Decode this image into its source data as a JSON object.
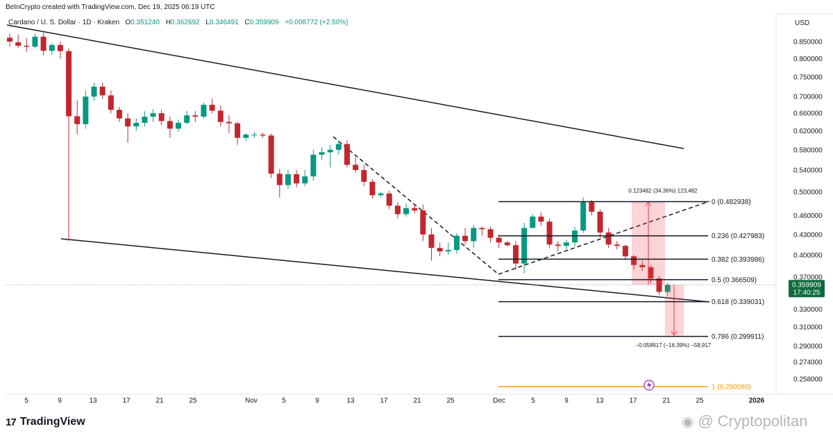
{
  "header": {
    "credit": "BeInCrypto created with TradingView.com, Dec 19, 2025 06:19 UTC",
    "symbol": "Cardano / U. S. Dollar · 1D · Kraken",
    "o_label": "O",
    "o_value": "0.351240",
    "h_label": "H",
    "h_value": "0.362692",
    "l_label": "L",
    "l_value": "0.346491",
    "c_label": "C",
    "c_value": "0.359909",
    "change": "+0.008772 (+2.50%)",
    "currency": "USD"
  },
  "brand": {
    "name": "TradingView",
    "logo": "17"
  },
  "watermark": {
    "text": "Cryptopolitan",
    "icon": "weibo-icon"
  },
  "colors": {
    "up": "#089981",
    "down": "#c2272d",
    "fib_extension": "#ff9800",
    "price_tag": "#0f6b3f"
  },
  "chart_data": {
    "type": "candlestick",
    "scale": "log",
    "y_ticks": [
      "0.850000",
      "0.800000",
      "0.750000",
      "0.700000",
      "0.660000",
      "0.620000",
      "0.580000",
      "0.540000",
      "0.500000",
      "0.460000",
      "0.430000",
      "0.400000",
      "0.370000",
      "0.330000",
      "0.310000",
      "0.290000",
      "0.274000",
      "0.258000"
    ],
    "x_ticks": [
      "5",
      "9",
      "13",
      "17",
      "21",
      "25",
      "Nov",
      "5",
      "9",
      "13",
      "17",
      "21",
      "25",
      "Dec",
      "5",
      "9",
      "13",
      "17",
      "21",
      "25",
      "2026"
    ],
    "last_price": {
      "value": "0.359909",
      "countdown": "17:40:25"
    },
    "candles": [
      {
        "o": 0.862,
        "h": 0.876,
        "l": 0.835,
        "c": 0.85
      },
      {
        "o": 0.848,
        "h": 0.872,
        "l": 0.832,
        "c": 0.838
      },
      {
        "o": 0.838,
        "h": 0.86,
        "l": 0.82,
        "c": 0.835
      },
      {
        "o": 0.835,
        "h": 0.875,
        "l": 0.83,
        "c": 0.865
      },
      {
        "o": 0.865,
        "h": 0.878,
        "l": 0.81,
        "c": 0.823
      },
      {
        "o": 0.823,
        "h": 0.845,
        "l": 0.812,
        "c": 0.84
      },
      {
        "o": 0.84,
        "h": 0.85,
        "l": 0.8,
        "c": 0.822
      },
      {
        "o": 0.822,
        "h": 0.83,
        "l": 0.42,
        "c": 0.653
      },
      {
        "o": 0.653,
        "h": 0.69,
        "l": 0.612,
        "c": 0.635
      },
      {
        "o": 0.635,
        "h": 0.715,
        "l": 0.625,
        "c": 0.7
      },
      {
        "o": 0.7,
        "h": 0.735,
        "l": 0.69,
        "c": 0.725
      },
      {
        "o": 0.725,
        "h": 0.735,
        "l": 0.695,
        "c": 0.703
      },
      {
        "o": 0.703,
        "h": 0.715,
        "l": 0.66,
        "c": 0.668
      },
      {
        "o": 0.668,
        "h": 0.675,
        "l": 0.64,
        "c": 0.648
      },
      {
        "o": 0.648,
        "h": 0.66,
        "l": 0.595,
        "c": 0.63
      },
      {
        "o": 0.63,
        "h": 0.648,
        "l": 0.62,
        "c": 0.638
      },
      {
        "o": 0.638,
        "h": 0.665,
        "l": 0.63,
        "c": 0.652
      },
      {
        "o": 0.652,
        "h": 0.67,
        "l": 0.64,
        "c": 0.66
      },
      {
        "o": 0.66,
        "h": 0.668,
        "l": 0.633,
        "c": 0.642
      },
      {
        "o": 0.642,
        "h": 0.652,
        "l": 0.605,
        "c": 0.625
      },
      {
        "o": 0.625,
        "h": 0.645,
        "l": 0.618,
        "c": 0.638
      },
      {
        "o": 0.638,
        "h": 0.665,
        "l": 0.635,
        "c": 0.655
      },
      {
        "o": 0.655,
        "h": 0.665,
        "l": 0.64,
        "c": 0.652
      },
      {
        "o": 0.652,
        "h": 0.685,
        "l": 0.648,
        "c": 0.68
      },
      {
        "o": 0.68,
        "h": 0.695,
        "l": 0.66,
        "c": 0.666
      },
      {
        "o": 0.666,
        "h": 0.678,
        "l": 0.63,
        "c": 0.64
      },
      {
        "o": 0.64,
        "h": 0.655,
        "l": 0.615,
        "c": 0.637
      },
      {
        "o": 0.637,
        "h": 0.64,
        "l": 0.59,
        "c": 0.605
      },
      {
        "o": 0.605,
        "h": 0.615,
        "l": 0.598,
        "c": 0.612
      },
      {
        "o": 0.612,
        "h": 0.618,
        "l": 0.605,
        "c": 0.612
      },
      {
        "o": 0.612,
        "h": 0.616,
        "l": 0.605,
        "c": 0.61
      },
      {
        "o": 0.61,
        "h": 0.614,
        "l": 0.525,
        "c": 0.533
      },
      {
        "o": 0.533,
        "h": 0.542,
        "l": 0.49,
        "c": 0.512
      },
      {
        "o": 0.512,
        "h": 0.54,
        "l": 0.505,
        "c": 0.532
      },
      {
        "o": 0.532,
        "h": 0.54,
        "l": 0.508,
        "c": 0.515
      },
      {
        "o": 0.515,
        "h": 0.54,
        "l": 0.51,
        "c": 0.528
      },
      {
        "o": 0.528,
        "h": 0.58,
        "l": 0.52,
        "c": 0.57
      },
      {
        "o": 0.57,
        "h": 0.585,
        "l": 0.56,
        "c": 0.575
      },
      {
        "o": 0.575,
        "h": 0.59,
        "l": 0.545,
        "c": 0.58
      },
      {
        "o": 0.58,
        "h": 0.6,
        "l": 0.57,
        "c": 0.592
      },
      {
        "o": 0.592,
        "h": 0.6,
        "l": 0.545,
        "c": 0.55
      },
      {
        "o": 0.55,
        "h": 0.565,
        "l": 0.535,
        "c": 0.54
      },
      {
        "o": 0.54,
        "h": 0.55,
        "l": 0.51,
        "c": 0.518
      },
      {
        "o": 0.518,
        "h": 0.523,
        "l": 0.488,
        "c": 0.494
      },
      {
        "o": 0.494,
        "h": 0.5,
        "l": 0.49,
        "c": 0.497
      },
      {
        "o": 0.497,
        "h": 0.502,
        "l": 0.47,
        "c": 0.476
      },
      {
        "o": 0.476,
        "h": 0.482,
        "l": 0.455,
        "c": 0.462
      },
      {
        "o": 0.462,
        "h": 0.48,
        "l": 0.458,
        "c": 0.472
      },
      {
        "o": 0.472,
        "h": 0.478,
        "l": 0.463,
        "c": 0.468
      },
      {
        "o": 0.468,
        "h": 0.478,
        "l": 0.42,
        "c": 0.43
      },
      {
        "o": 0.43,
        "h": 0.44,
        "l": 0.392,
        "c": 0.41
      },
      {
        "o": 0.41,
        "h": 0.418,
        "l": 0.398,
        "c": 0.405
      },
      {
        "o": 0.405,
        "h": 0.418,
        "l": 0.4,
        "c": 0.407
      },
      {
        "o": 0.407,
        "h": 0.432,
        "l": 0.402,
        "c": 0.428
      },
      {
        "o": 0.428,
        "h": 0.44,
        "l": 0.415,
        "c": 0.42
      },
      {
        "o": 0.42,
        "h": 0.445,
        "l": 0.41,
        "c": 0.44
      },
      {
        "o": 0.44,
        "h": 0.442,
        "l": 0.428,
        "c": 0.438
      },
      {
        "o": 0.438,
        "h": 0.442,
        "l": 0.418,
        "c": 0.425
      },
      {
        "o": 0.425,
        "h": 0.43,
        "l": 0.41,
        "c": 0.418
      },
      {
        "o": 0.418,
        "h": 0.42,
        "l": 0.412,
        "c": 0.414
      },
      {
        "o": 0.414,
        "h": 0.42,
        "l": 0.38,
        "c": 0.388
      },
      {
        "o": 0.388,
        "h": 0.448,
        "l": 0.375,
        "c": 0.44
      },
      {
        "o": 0.44,
        "h": 0.462,
        "l": 0.44,
        "c": 0.458
      },
      {
        "o": 0.458,
        "h": 0.465,
        "l": 0.444,
        "c": 0.45
      },
      {
        "o": 0.45,
        "h": 0.455,
        "l": 0.41,
        "c": 0.415
      },
      {
        "o": 0.415,
        "h": 0.42,
        "l": 0.405,
        "c": 0.413
      },
      {
        "o": 0.413,
        "h": 0.422,
        "l": 0.408,
        "c": 0.418
      },
      {
        "o": 0.418,
        "h": 0.442,
        "l": 0.412,
        "c": 0.436
      },
      {
        "o": 0.436,
        "h": 0.49,
        "l": 0.432,
        "c": 0.482
      },
      {
        "o": 0.482,
        "h": 0.486,
        "l": 0.46,
        "c": 0.466
      },
      {
        "o": 0.466,
        "h": 0.47,
        "l": 0.425,
        "c": 0.433
      },
      {
        "o": 0.433,
        "h": 0.44,
        "l": 0.41,
        "c": 0.415
      },
      {
        "o": 0.415,
        "h": 0.42,
        "l": 0.408,
        "c": 0.413
      },
      {
        "o": 0.413,
        "h": 0.415,
        "l": 0.393,
        "c": 0.398
      },
      {
        "o": 0.398,
        "h": 0.4,
        "l": 0.38,
        "c": 0.386
      },
      {
        "o": 0.386,
        "h": 0.392,
        "l": 0.378,
        "c": 0.383
      },
      {
        "o": 0.383,
        "h": 0.386,
        "l": 0.362,
        "c": 0.368
      },
      {
        "o": 0.368,
        "h": 0.371,
        "l": 0.347,
        "c": 0.351
      },
      {
        "o": 0.351,
        "h": 0.3627,
        "l": 0.3465,
        "c": 0.3599
      }
    ],
    "fib_levels": [
      {
        "label": "0 (0.482938)",
        "value": 0.482938
      },
      {
        "label": "0.236 (0.427983)",
        "value": 0.427983
      },
      {
        "label": "0.382 (0.393986)",
        "value": 0.393986
      },
      {
        "label": "0.5 (0.366509)",
        "value": 0.366509
      },
      {
        "label": "0.618 (0.339031)",
        "value": 0.339031
      },
      {
        "label": "0.786 (0.299911)",
        "value": 0.299911
      },
      {
        "label": "1 (0.250080)",
        "value": 0.25008
      }
    ],
    "measure_up": {
      "label": "0.123482 (34.36%) 123,482",
      "from": 0.3599,
      "to": 0.4829
    },
    "measure_down": {
      "label": "−0.058917 (−16.39%) −58,917",
      "from": 0.3599,
      "to": 0.301
    }
  }
}
